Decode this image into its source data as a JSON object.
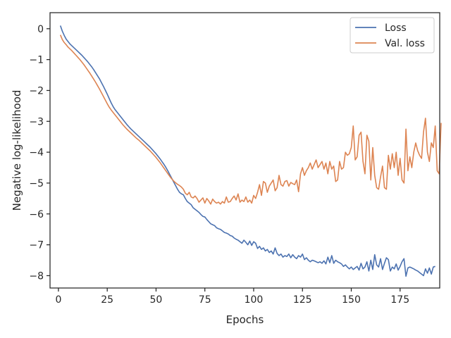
{
  "chart_data": {
    "type": "line",
    "title": "",
    "xlabel": "Epochs",
    "ylabel": "Negative log-likelihood",
    "xlim": [
      -4.3,
      195.3
    ],
    "ylim": [
      -8.4,
      0.52
    ],
    "xticks": [
      0,
      25,
      50,
      75,
      100,
      125,
      150,
      175
    ],
    "yticks": [
      0,
      -1,
      -2,
      -3,
      -4,
      -5,
      -6,
      -7,
      -8
    ],
    "xtick_labels": [
      "0",
      "25",
      "50",
      "75",
      "100",
      "125",
      "150",
      "175"
    ],
    "ytick_labels": [
      "0",
      "−1",
      "−2",
      "−3",
      "−4",
      "−5",
      "−6",
      "−7",
      "−8"
    ],
    "grid": false,
    "legend": "top-right",
    "x_start": 1,
    "series": [
      {
        "name": "Loss",
        "color": "#4c72b0",
        "values": [
          0.1,
          -0.08,
          -0.22,
          -0.34,
          -0.42,
          -0.5,
          -0.56,
          -0.62,
          -0.68,
          -0.74,
          -0.8,
          -0.86,
          -0.93,
          -1.0,
          -1.07,
          -1.15,
          -1.23,
          -1.32,
          -1.42,
          -1.52,
          -1.62,
          -1.74,
          -1.86,
          -1.99,
          -2.12,
          -2.26,
          -2.4,
          -2.52,
          -2.62,
          -2.7,
          -2.78,
          -2.86,
          -2.94,
          -3.02,
          -3.1,
          -3.17,
          -3.24,
          -3.3,
          -3.36,
          -3.42,
          -3.48,
          -3.54,
          -3.6,
          -3.66,
          -3.72,
          -3.78,
          -3.84,
          -3.91,
          -3.98,
          -4.05,
          -4.13,
          -4.21,
          -4.3,
          -4.39,
          -4.49,
          -4.6,
          -4.72,
          -4.84,
          -4.96,
          -5.08,
          -5.2,
          -5.3,
          -5.35,
          -5.38,
          -5.5,
          -5.6,
          -5.65,
          -5.7,
          -5.8,
          -5.85,
          -5.9,
          -5.95,
          -6.02,
          -6.08,
          -6.1,
          -6.18,
          -6.25,
          -6.32,
          -6.35,
          -6.38,
          -6.45,
          -6.48,
          -6.5,
          -6.55,
          -6.6,
          -6.62,
          -6.65,
          -6.7,
          -6.72,
          -6.78,
          -6.82,
          -6.85,
          -6.9,
          -6.95,
          -6.85,
          -6.92,
          -7.0,
          -6.88,
          -7.02,
          -6.9,
          -6.95,
          -7.12,
          -7.05,
          -7.15,
          -7.1,
          -7.2,
          -7.15,
          -7.25,
          -7.2,
          -7.3,
          -7.1,
          -7.28,
          -7.35,
          -7.3,
          -7.4,
          -7.35,
          -7.38,
          -7.3,
          -7.42,
          -7.32,
          -7.4,
          -7.45,
          -7.35,
          -7.4,
          -7.3,
          -7.48,
          -7.42,
          -7.5,
          -7.55,
          -7.5,
          -7.52,
          -7.55,
          -7.58,
          -7.55,
          -7.6,
          -7.52,
          -7.62,
          -7.4,
          -7.58,
          -7.35,
          -7.6,
          -7.5,
          -7.55,
          -7.58,
          -7.62,
          -7.7,
          -7.65,
          -7.72,
          -7.78,
          -7.72,
          -7.8,
          -7.75,
          -7.7,
          -7.82,
          -7.6,
          -7.78,
          -7.72,
          -7.55,
          -7.85,
          -7.5,
          -7.8,
          -7.32,
          -7.65,
          -7.72,
          -7.45,
          -7.8,
          -7.6,
          -7.42,
          -7.48,
          -7.85,
          -7.72,
          -7.78,
          -7.62,
          -7.82,
          -7.7,
          -7.55,
          -7.45,
          -8.02,
          -7.75,
          -7.72,
          -7.75,
          -7.78,
          -7.82,
          -7.85,
          -7.9,
          -7.95,
          -8.0,
          -7.78,
          -7.92,
          -7.75,
          -7.95,
          -7.72,
          -7.7
        ],
        "label": "Loss"
      },
      {
        "name": "Val. loss",
        "color": "#dd8452",
        "values": [
          -0.2,
          -0.35,
          -0.45,
          -0.52,
          -0.6,
          -0.66,
          -0.72,
          -0.79,
          -0.86,
          -0.93,
          -1.0,
          -1.08,
          -1.16,
          -1.25,
          -1.34,
          -1.43,
          -1.53,
          -1.63,
          -1.73,
          -1.84,
          -1.95,
          -2.07,
          -2.19,
          -2.31,
          -2.43,
          -2.54,
          -2.63,
          -2.71,
          -2.79,
          -2.87,
          -2.95,
          -3.03,
          -3.11,
          -3.18,
          -3.25,
          -3.31,
          -3.37,
          -3.43,
          -3.49,
          -3.55,
          -3.6,
          -3.66,
          -3.72,
          -3.78,
          -3.84,
          -3.9,
          -3.96,
          -4.03,
          -4.1,
          -4.17,
          -4.25,
          -4.33,
          -4.42,
          -4.51,
          -4.6,
          -4.69,
          -4.78,
          -4.86,
          -4.93,
          -4.99,
          -5.04,
          -5.08,
          -5.13,
          -5.2,
          -5.33,
          -5.38,
          -5.3,
          -5.45,
          -5.48,
          -5.42,
          -5.5,
          -5.62,
          -5.55,
          -5.48,
          -5.65,
          -5.5,
          -5.58,
          -5.68,
          -5.52,
          -5.6,
          -5.65,
          -5.62,
          -5.68,
          -5.6,
          -5.65,
          -5.45,
          -5.62,
          -5.6,
          -5.5,
          -5.42,
          -5.55,
          -5.35,
          -5.62,
          -5.55,
          -5.6,
          -5.45,
          -5.62,
          -5.55,
          -5.65,
          -5.4,
          -5.5,
          -5.3,
          -5.05,
          -5.4,
          -4.95,
          -5.0,
          -5.3,
          -5.1,
          -5.0,
          -4.9,
          -5.25,
          -5.15,
          -4.75,
          -5.05,
          -5.1,
          -4.95,
          -4.92,
          -5.1,
          -4.98,
          -5.02,
          -5.05,
          -4.9,
          -5.28,
          -4.7,
          -4.5,
          -4.75,
          -4.6,
          -4.5,
          -4.35,
          -4.55,
          -4.4,
          -4.25,
          -4.5,
          -4.4,
          -4.3,
          -4.55,
          -4.35,
          -4.7,
          -4.3,
          -4.55,
          -4.45,
          -4.95,
          -4.9,
          -4.3,
          -4.55,
          -4.5,
          -4.0,
          -4.1,
          -4.05,
          -3.85,
          -3.15,
          -4.25,
          -4.15,
          -3.45,
          -3.35,
          -4.3,
          -4.7,
          -3.45,
          -3.65,
          -4.9,
          -3.85,
          -4.75,
          -5.15,
          -5.2,
          -4.8,
          -4.45,
          -5.15,
          -5.2,
          -4.1,
          -4.55,
          -4.05,
          -4.5,
          -4.0,
          -4.75,
          -4.2,
          -4.9,
          -5.0,
          -3.25,
          -4.6,
          -4.15,
          -4.5,
          -4.0,
          -3.7,
          -3.95,
          -4.1,
          -4.2,
          -3.35,
          -2.9,
          -4.0,
          -4.3,
          -3.7,
          -3.85,
          -3.15,
          -4.6,
          -4.7,
          -3.05
        ]
      }
    ]
  }
}
